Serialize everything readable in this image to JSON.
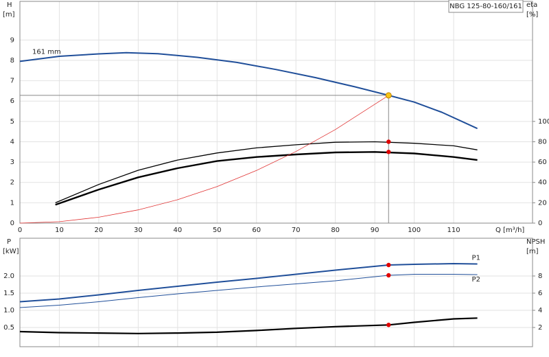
{
  "chart_data": [
    {
      "type": "line",
      "title": "NBG 125-80-160/161",
      "ylabel": "H",
      "yunit": "[m]",
      "y2label": "eta",
      "y2unit": "[%]",
      "xlabel": "Q [m³/h]",
      "xlim": [
        0,
        130
      ],
      "xticks": [
        0,
        10,
        20,
        30,
        40,
        50,
        60,
        70,
        80,
        90,
        100,
        110
      ],
      "ylim": [
        0,
        10.9
      ],
      "yticks": [
        0,
        1,
        2,
        3,
        4,
        5,
        6,
        7,
        8,
        9
      ],
      "y2lim": [
        0,
        218
      ],
      "y2ticks": [
        0,
        20,
        40,
        60,
        80,
        100
      ],
      "grid": true,
      "show_xtick_labels": true,
      "series": [
        {
          "name": "161 mm",
          "color": "#1f4e99",
          "width": 2,
          "x": [
            0,
            10,
            20,
            27,
            35,
            45,
            55,
            65,
            75,
            85,
            93.5,
            100,
            107,
            116
          ],
          "values": [
            7.95,
            8.2,
            8.32,
            8.38,
            8.33,
            8.15,
            7.9,
            7.55,
            7.15,
            6.7,
            6.28,
            5.95,
            5.45,
            4.65
          ]
        },
        {
          "color": "#000000",
          "width": 1.3,
          "axis": "y2",
          "x": [
            9,
            20,
            30,
            40,
            50,
            60,
            70,
            80,
            90,
            100,
            110,
            116
          ],
          "values": [
            20,
            38,
            52,
            62,
            69,
            74,
            77,
            79.5,
            80,
            78.5,
            76,
            72
          ]
        },
        {
          "color": "#000000",
          "width": 2.4,
          "axis": "y2",
          "x": [
            9,
            20,
            30,
            40,
            50,
            60,
            70,
            80,
            90,
            100,
            110,
            116
          ],
          "values": [
            18,
            33,
            45,
            54,
            61,
            65,
            67.5,
            69.5,
            70,
            68.5,
            65,
            62
          ]
        },
        {
          "color": "#e03030",
          "width": 0.8,
          "x": [
            0,
            10,
            20,
            30,
            40,
            50,
            60,
            70,
            80,
            93.5
          ],
          "values": [
            0,
            0.07,
            0.29,
            0.65,
            1.15,
            1.8,
            2.59,
            3.52,
            4.6,
            6.28
          ]
        }
      ],
      "markers": [
        {
          "x": 93.5,
          "y": 6.28,
          "color": "#f5c518",
          "guide": true
        },
        {
          "x": 93.5,
          "y": 80,
          "color": "#e00000",
          "axis": "y2"
        },
        {
          "x": 93.5,
          "y": 70,
          "color": "#e00000",
          "axis": "y2"
        }
      ]
    },
    {
      "type": "line",
      "ylabel": "P",
      "yunit": "[kW]",
      "y2label": "NPSH",
      "y2unit": "[m]",
      "xlim": [
        0,
        130
      ],
      "xticks": [
        0,
        10,
        20,
        30,
        40,
        50,
        60,
        70,
        80,
        90,
        100,
        110
      ],
      "ylim": [
        -0.06,
        3.1
      ],
      "yticks": [
        0.5,
        {
          "value": 1,
          "label": "1.0"
        },
        1.5,
        {
          "value": 2,
          "label": "2.0"
        }
      ],
      "y2lim": [
        -0.24,
        12.4
      ],
      "y2ticks": [
        2,
        4,
        6,
        8
      ],
      "grid": true,
      "show_xtick_labels": false,
      "series": [
        {
          "name": "P1",
          "color": "#1f4e99",
          "width": 2,
          "x": [
            0,
            10,
            20,
            30,
            40,
            50,
            60,
            70,
            80,
            93.5,
            100,
            110,
            116
          ],
          "values": [
            1.25,
            1.33,
            1.45,
            1.58,
            1.7,
            1.82,
            1.93,
            2.05,
            2.17,
            2.32,
            2.34,
            2.36,
            2.35
          ]
        },
        {
          "name": "P2",
          "color": "#1f4e99",
          "width": 1,
          "x": [
            0,
            10,
            20,
            30,
            40,
            50,
            60,
            70,
            80,
            93.5,
            100,
            110,
            116
          ],
          "values": [
            1.08,
            1.15,
            1.25,
            1.37,
            1.48,
            1.58,
            1.68,
            1.77,
            1.86,
            2.02,
            2.05,
            2.05,
            2.04
          ]
        },
        {
          "color": "#000000",
          "width": 2.2,
          "axis": "y2",
          "x": [
            0,
            10,
            20,
            30,
            40,
            50,
            60,
            70,
            80,
            93.5,
            100,
            110,
            116
          ],
          "values": [
            1.52,
            1.4,
            1.35,
            1.3,
            1.35,
            1.45,
            1.65,
            1.9,
            2.1,
            2.3,
            2.6,
            3.0,
            3.1
          ]
        }
      ],
      "markers": [
        {
          "x": 93.5,
          "y": 2.32,
          "color": "#e00000"
        },
        {
          "x": 93.5,
          "y": 2.02,
          "color": "#e00000"
        },
        {
          "x": 93.5,
          "y": 2.3,
          "color": "#e00000",
          "axis": "y2"
        }
      ]
    }
  ]
}
